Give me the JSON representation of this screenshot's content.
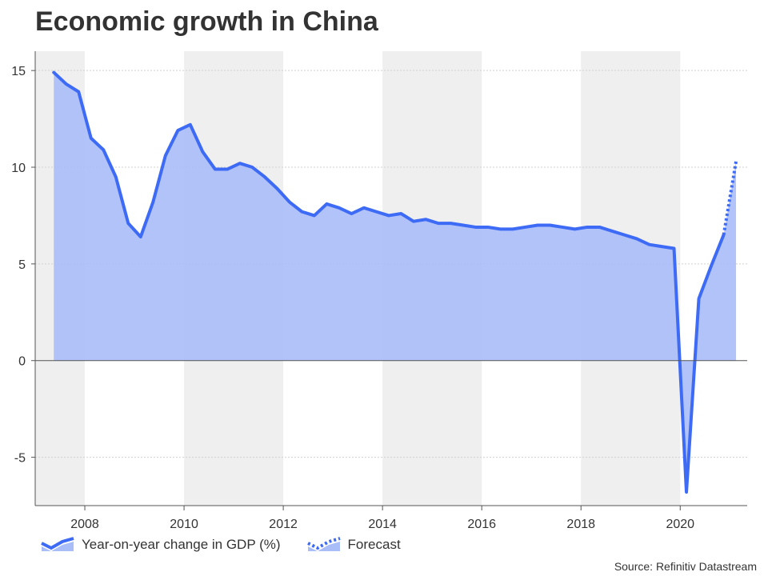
{
  "title": "Economic growth in China",
  "source": "Source: Refinitiv Datastream",
  "colors": {
    "line": "#3e6bf5",
    "fill": "#a9bdf8",
    "band": "#efefef",
    "text": "#333333"
  },
  "chart_data": {
    "type": "area",
    "title": "Economic growth in China",
    "ylim": [
      -7.5,
      16
    ],
    "xlim": [
      2007.0,
      2021.35
    ],
    "yticks": [
      15,
      10,
      5,
      0,
      -5
    ],
    "ytick_labels": [
      "15",
      "10",
      "5",
      "0",
      "-5"
    ],
    "xticks": [
      2008,
      2010,
      2012,
      2014,
      2016,
      2018,
      2020
    ],
    "xtick_labels": [
      "2008",
      "2010",
      "2012",
      "2014",
      "2016",
      "2018",
      "2020"
    ],
    "grid": true,
    "legend_position": "bottom-left",
    "shaded_bands": [
      [
        2007.0,
        2008.0
      ],
      [
        2010.0,
        2012.0
      ],
      [
        2014.0,
        2016.0
      ],
      [
        2018.0,
        2020.0
      ]
    ],
    "series": [
      {
        "name": "Year-on-year change in GDP (%)",
        "style": "solid",
        "x": [
          2007.375,
          2007.625,
          2007.875,
          2008.125,
          2008.375,
          2008.625,
          2008.875,
          2009.125,
          2009.375,
          2009.625,
          2009.875,
          2010.125,
          2010.375,
          2010.625,
          2010.875,
          2011.125,
          2011.375,
          2011.625,
          2011.875,
          2012.125,
          2012.375,
          2012.625,
          2012.875,
          2013.125,
          2013.375,
          2013.625,
          2013.875,
          2014.125,
          2014.375,
          2014.625,
          2014.875,
          2015.125,
          2015.375,
          2015.625,
          2015.875,
          2016.125,
          2016.375,
          2016.625,
          2016.875,
          2017.125,
          2017.375,
          2017.625,
          2017.875,
          2018.125,
          2018.375,
          2018.625,
          2018.875,
          2019.125,
          2019.375,
          2019.625,
          2019.875,
          2020.125,
          2020.375,
          2020.625,
          2020.875
        ],
        "values": [
          14.9,
          14.3,
          13.9,
          11.5,
          10.9,
          9.5,
          7.1,
          6.4,
          8.2,
          10.6,
          11.9,
          12.2,
          10.8,
          9.9,
          9.9,
          10.2,
          10.0,
          9.5,
          8.9,
          8.2,
          7.7,
          7.5,
          8.1,
          7.9,
          7.6,
          7.9,
          7.7,
          7.5,
          7.6,
          7.2,
          7.3,
          7.1,
          7.1,
          7.0,
          6.9,
          6.9,
          6.8,
          6.8,
          6.9,
          7.0,
          7.0,
          6.9,
          6.8,
          6.9,
          6.9,
          6.7,
          6.5,
          6.3,
          6.0,
          5.9,
          5.8,
          -6.8,
          3.2,
          4.9,
          6.5
        ]
      },
      {
        "name": "Forecast",
        "style": "dotted",
        "x": [
          2020.875,
          2021.125
        ],
        "values": [
          6.5,
          10.3
        ]
      }
    ]
  }
}
